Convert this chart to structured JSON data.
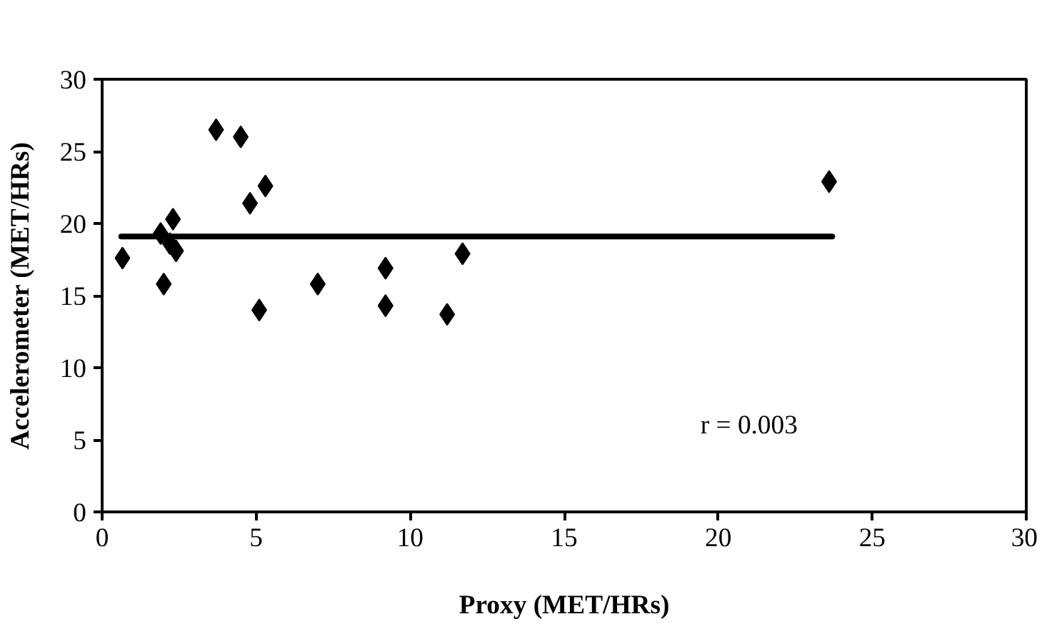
{
  "chart_data": {
    "type": "scatter",
    "xlabel": "Proxy (MET/HRs)",
    "ylabel": "Accelerometer (MET/HRs)",
    "xlim": [
      0,
      30
    ],
    "xticks": [
      0,
      5,
      10,
      15,
      20,
      25,
      30
    ],
    "ylim": [
      0,
      30
    ],
    "yticks": [
      0,
      5,
      10,
      15,
      20,
      25,
      30
    ],
    "grid": false,
    "series": [
      {
        "marker": "diamond",
        "color": "#000000",
        "x": [
          0.66,
          2.0,
          1.9,
          2.3,
          2.4,
          2.2,
          3.7,
          4.5,
          4.8,
          5.3,
          5.1,
          7.0,
          9.2,
          9.2,
          11.2,
          11.7,
          23.6
        ],
        "values": [
          17.6,
          15.8,
          19.3,
          20.3,
          18.1,
          18.6,
          26.5,
          26.0,
          21.4,
          22.6,
          14.0,
          15.8,
          16.9,
          14.3,
          13.7,
          17.9,
          22.9
        ]
      },
      {
        "type": "line",
        "marker": "none",
        "color": "#000000",
        "x": [
          0.62,
          23.7
        ],
        "values": [
          19.1,
          19.1
        ]
      }
    ],
    "annotations": [
      "r = 0.003"
    ]
  }
}
